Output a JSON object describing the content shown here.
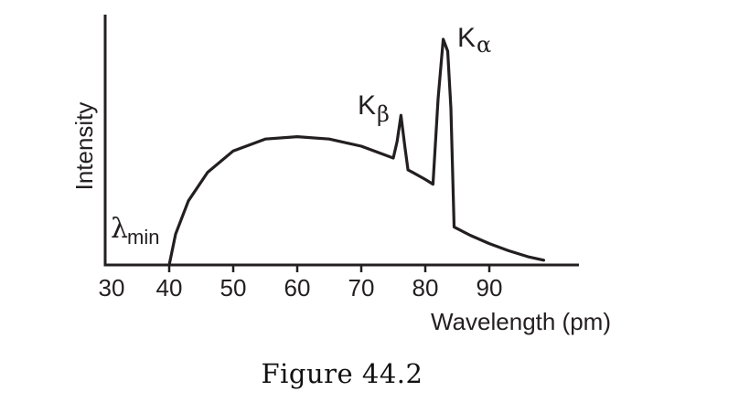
{
  "caption": "Figure 44.2",
  "chart_data": {
    "type": "line",
    "xlabel": "Wavelength (pm)",
    "ylabel": "Intensity",
    "xlim": [
      30,
      100
    ],
    "ylim": [
      0,
      10
    ],
    "x_ticks": [
      30,
      40,
      50,
      60,
      70,
      80,
      90
    ],
    "y_ticks": [],
    "grid": false,
    "series": [
      {
        "values_x": [
          40,
          41,
          43,
          46,
          50,
          55,
          60,
          65,
          70,
          75,
          75.6,
          76.2,
          76.8,
          77.3,
          78,
          80,
          81.2,
          82,
          82.8,
          83.5,
          84,
          84.5,
          87,
          90,
          93,
          96,
          98.5
        ],
        "values_y": [
          0,
          1.3,
          2.7,
          3.9,
          4.8,
          5.3,
          5.4,
          5.3,
          5.0,
          4.5,
          5.2,
          6.3,
          5.0,
          4.0,
          3.9,
          3.6,
          3.4,
          7.0,
          9.5,
          9.0,
          6.6,
          1.6,
          1.25,
          0.9,
          0.6,
          0.35,
          0.2
        ]
      }
    ],
    "annotations": [
      {
        "letter": "K",
        "sub": "β",
        "x": 76.4
      },
      {
        "letter": "K",
        "sub": "α",
        "x": 83
      },
      {
        "letter": "λ",
        "sub": "min",
        "x": 40
      }
    ]
  }
}
